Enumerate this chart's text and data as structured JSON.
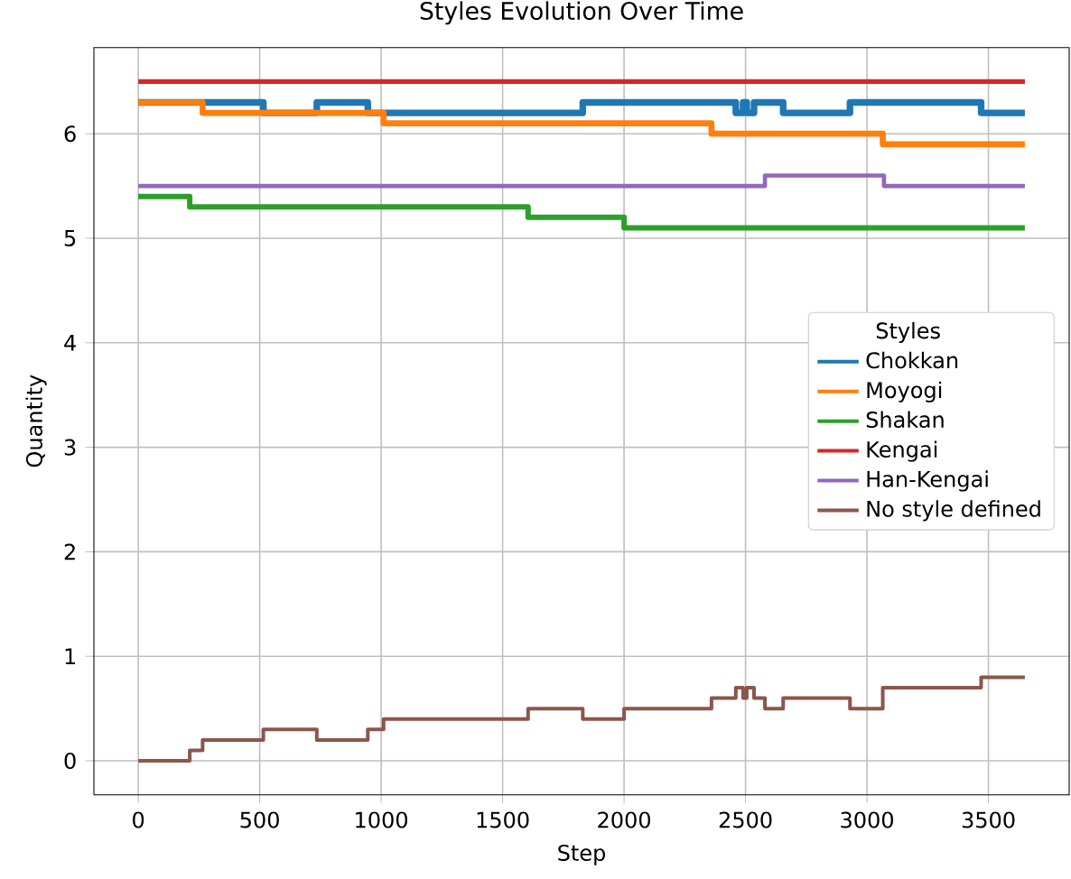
{
  "chart_data": {
    "type": "step",
    "title": "Styles Evolution Over Time",
    "xlabel": "Step",
    "ylabel": "Quantity",
    "legend_title": "Styles",
    "xlim": [
      -182.5,
      3832.5
    ],
    "ylim": [
      -0.325,
      6.825
    ],
    "xticks": [
      0,
      500,
      1000,
      1500,
      2000,
      2500,
      3000,
      3500
    ],
    "yticks": [
      0,
      1,
      2,
      3,
      4,
      5,
      6
    ],
    "grid": true,
    "legend": "right",
    "line_style": "solid",
    "series": [
      {
        "name": "Chokkan",
        "color": "#1f77b4",
        "x": [
          0,
          515,
          735,
          945,
          1830,
          2460,
          2490,
          2505,
          2535,
          2655,
          2930,
          3470,
          3650
        ],
        "values": [
          6.3,
          6.2,
          6.3,
          6.2,
          6.3,
          6.2,
          6.3,
          6.2,
          6.3,
          6.2,
          6.3,
          6.2,
          6.2
        ]
      },
      {
        "name": "Moyogi",
        "color": "#ff7f0e",
        "x": [
          0,
          265,
          1010,
          2360,
          3065,
          3650
        ],
        "values": [
          6.3,
          6.2,
          6.1,
          6.0,
          5.9,
          5.9
        ]
      },
      {
        "name": "Shakan",
        "color": "#2ca02c",
        "x": [
          0,
          212,
          1605,
          2000,
          3650
        ],
        "values": [
          5.4,
          5.3,
          5.2,
          5.1,
          5.1
        ]
      },
      {
        "name": "Kengai",
        "color": "#d62728",
        "x": [
          0,
          3650
        ],
        "values": [
          6.5,
          6.5
        ]
      },
      {
        "name": "Han-Kengai",
        "color": "#9467bd",
        "x": [
          0,
          2580,
          3070,
          3650
        ],
        "values": [
          5.5,
          5.6,
          5.5,
          5.5
        ]
      },
      {
        "name": "No style defined",
        "color": "#8c564b",
        "x": [
          0,
          212,
          265,
          515,
          735,
          945,
          1010,
          1605,
          1830,
          2000,
          2360,
          2460,
          2490,
          2505,
          2535,
          2580,
          2655,
          2930,
          3065,
          3470,
          3650
        ],
        "values": [
          0,
          0.1,
          0.2,
          0.3,
          0.2,
          0.3,
          0.4,
          0.5,
          0.4,
          0.5,
          0.6,
          0.7,
          0.6,
          0.7,
          0.6,
          0.5,
          0.6,
          0.5,
          0.7,
          0.8,
          0.8
        ]
      }
    ]
  }
}
